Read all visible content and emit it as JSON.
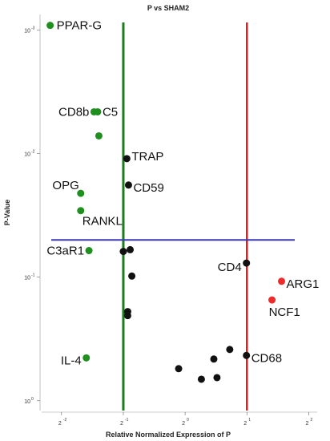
{
  "chart_data": {
    "type": "scatter",
    "title": "P vs SHAM2",
    "xlabel": "Relative Normalized Expression of P",
    "ylabel": "P-Value",
    "x_scale": "log2",
    "y_scale": "log10",
    "y_axis_inverted": true,
    "xlim": [
      0.2,
      4.4
    ],
    "ylim": [
      0.00075,
      1.2
    ],
    "x_ticks": [
      {
        "base": "2",
        "exp": "-2",
        "value": 0.25
      },
      {
        "base": "2",
        "exp": "-1",
        "value": 0.5
      },
      {
        "base": "2",
        "exp": "0",
        "value": 1
      },
      {
        "base": "2",
        "exp": "1",
        "value": 2
      },
      {
        "base": "2",
        "exp": "2",
        "value": 4
      }
    ],
    "y_ticks": [
      {
        "base": "10",
        "exp": "-3",
        "value": 0.001
      },
      {
        "base": "10",
        "exp": "-2",
        "value": 0.01
      },
      {
        "base": "10",
        "exp": "-1",
        "value": 0.1
      },
      {
        "base": "10",
        "exp": "0",
        "value": 1
      }
    ],
    "thresholds": {
      "fold_down": {
        "x": 0.5,
        "color": "#1e7a1e"
      },
      "fold_up": {
        "x": 2,
        "color": "#e02020"
      },
      "p_value": {
        "y": 0.05,
        "color": "#3a3ab0"
      }
    },
    "colors": {
      "down": "#1f8f1f",
      "neutral": "#111111",
      "up": "#ee2a2a"
    },
    "points": [
      {
        "label": "PPAR-G",
        "x": 0.22,
        "y": 0.00092,
        "group": "down"
      },
      {
        "label": "CD8b",
        "x": 0.36,
        "y": 0.0046,
        "group": "down"
      },
      {
        "label": "C5",
        "x": 0.375,
        "y": 0.0046,
        "group": "down"
      },
      {
        "label": "",
        "x": 0.38,
        "y": 0.0072,
        "group": "down"
      },
      {
        "label": "OPG",
        "x": 0.31,
        "y": 0.021,
        "group": "down"
      },
      {
        "label": "RANKL",
        "x": 0.31,
        "y": 0.029,
        "group": "down"
      },
      {
        "label": "C3aR1",
        "x": 0.34,
        "y": 0.061,
        "group": "down"
      },
      {
        "label": "IL-4",
        "x": 0.33,
        "y": 0.45,
        "group": "down"
      },
      {
        "label": "TRAP",
        "x": 0.52,
        "y": 0.011,
        "group": "neutral"
      },
      {
        "label": "CD59",
        "x": 0.53,
        "y": 0.018,
        "group": "neutral"
      },
      {
        "label": "",
        "x": 0.5,
        "y": 0.062,
        "group": "neutral"
      },
      {
        "label": "",
        "x": 0.54,
        "y": 0.06,
        "group": "neutral"
      },
      {
        "label": "",
        "x": 0.55,
        "y": 0.098,
        "group": "neutral"
      },
      {
        "label": "",
        "x": 0.525,
        "y": 0.19,
        "group": "neutral"
      },
      {
        "label": "",
        "x": 0.525,
        "y": 0.205,
        "group": "neutral"
      },
      {
        "label": "CD4",
        "x": 1.99,
        "y": 0.077,
        "group": "neutral"
      },
      {
        "label": "CD68",
        "x": 1.99,
        "y": 0.43,
        "group": "neutral"
      },
      {
        "label": "",
        "x": 0.93,
        "y": 0.55,
        "group": "neutral"
      },
      {
        "label": "",
        "x": 1.2,
        "y": 0.67,
        "group": "neutral"
      },
      {
        "label": "",
        "x": 1.38,
        "y": 0.46,
        "group": "neutral"
      },
      {
        "label": "",
        "x": 1.43,
        "y": 0.65,
        "group": "neutral"
      },
      {
        "label": "",
        "x": 1.65,
        "y": 0.385,
        "group": "neutral"
      },
      {
        "label": "ARG1",
        "x": 2.95,
        "y": 0.108,
        "group": "up"
      },
      {
        "label": "NCF1",
        "x": 2.65,
        "y": 0.153,
        "group": "up"
      }
    ]
  }
}
